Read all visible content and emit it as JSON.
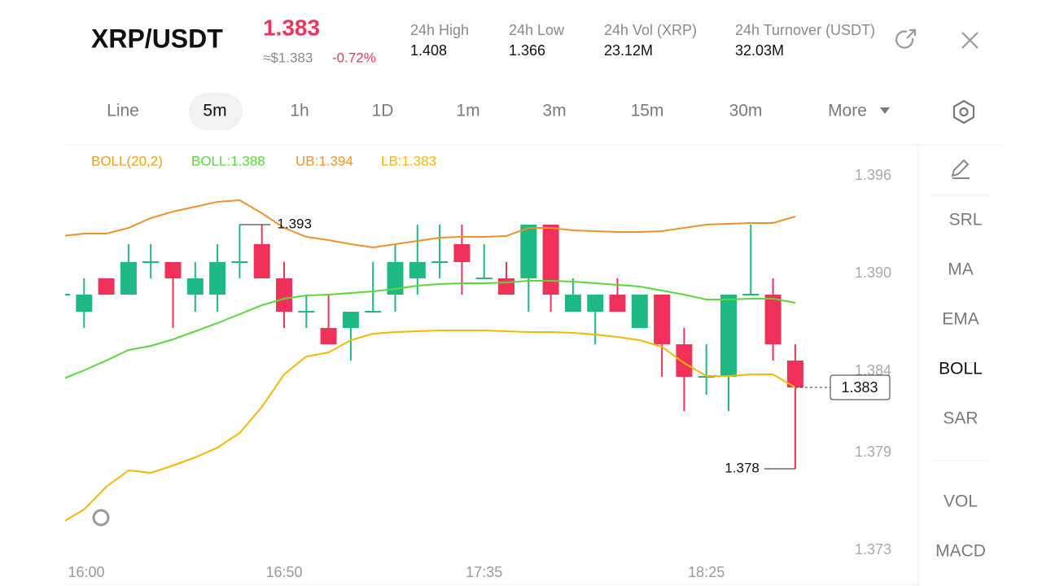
{
  "header": {
    "symbol": "XRP/USDT",
    "price": "1.383",
    "usd_price": "≈$1.383",
    "change": "-0.72%",
    "stats": [
      {
        "label": "24h  High",
        "value": "1.408"
      },
      {
        "label": "24h  Low",
        "value": "1.366"
      },
      {
        "label": "24h  Vol (XRP)",
        "value": "23.12M"
      },
      {
        "label": "24h  Turnover (USDT)",
        "value": "32.03M"
      }
    ]
  },
  "tabs": [
    "Line",
    "5m",
    "1h",
    "1D",
    "1m",
    "3m",
    "15m",
    "30m"
  ],
  "more": "More",
  "indicators": [
    "SRL",
    "MA",
    "EMA",
    "BOLL",
    "SAR"
  ],
  "sub_indicators": [
    "VOL",
    "MACD"
  ],
  "chart_data": {
    "type": "candlestick",
    "indicator": "BOLL(20,2)",
    "up_color": "#1fba84",
    "down_color": "#f0325a",
    "categories": [
      "16:00",
      null,
      null,
      null,
      null,
      null,
      null,
      null,
      null,
      null,
      "16:50",
      null,
      null,
      null,
      null,
      null,
      null,
      null,
      null,
      "17:35",
      null,
      null,
      null,
      null,
      null,
      null,
      null,
      null,
      null,
      "18:25",
      null,
      null,
      null,
      null
    ],
    "open": [
      1.3887,
      1.38765,
      1.3897,
      1.3887,
      1.3907,
      1.3907,
      1.3887,
      1.3887,
      1.3907,
      1.3918,
      1.3897,
      1.38765,
      1.38665,
      1.38665,
      1.38765,
      1.3887,
      1.3897,
      1.3907,
      1.3918,
      1.3897,
      1.3897,
      1.3897,
      1.393,
      1.38765,
      1.38765,
      1.3887,
      1.38665,
      1.3887,
      1.38565,
      1.38365,
      1.38365,
      1.3887,
      1.3887,
      1.38465
    ],
    "high": [
      1.3887,
      1.3897,
      1.3897,
      1.3918,
      1.3918,
      1.3907,
      1.3907,
      1.3918,
      1.393,
      1.393,
      1.3907,
      1.3887,
      1.3887,
      1.38765,
      1.3907,
      1.3918,
      1.393,
      1.393,
      1.393,
      1.3918,
      1.3907,
      1.393,
      1.393,
      1.3897,
      1.3887,
      1.3897,
      1.3887,
      1.3887,
      1.38665,
      1.38565,
      1.3887,
      1.393,
      1.3897,
      1.38565
    ],
    "low": [
      1.3887,
      1.38665,
      1.3887,
      1.3887,
      1.3897,
      1.38665,
      1.38765,
      1.38765,
      1.3897,
      1.3897,
      1.38665,
      1.38665,
      1.38565,
      1.38465,
      1.38765,
      1.38765,
      1.3887,
      1.3897,
      1.3887,
      1.3897,
      1.3887,
      1.38765,
      1.38765,
      1.38765,
      1.38565,
      1.38765,
      1.38665,
      1.38365,
      1.38155,
      1.38255,
      1.38155,
      1.3887,
      1.38465,
      1.378
    ],
    "close": [
      1.3887,
      1.3887,
      1.3887,
      1.3907,
      1.3907,
      1.3897,
      1.3897,
      1.3907,
      1.3907,
      1.3897,
      1.38765,
      1.38765,
      1.38565,
      1.38765,
      1.38765,
      1.3907,
      1.3907,
      1.3907,
      1.3907,
      1.3897,
      1.3887,
      1.393,
      1.3887,
      1.3887,
      1.3887,
      1.38765,
      1.3887,
      1.38565,
      1.38365,
      1.38365,
      1.3887,
      1.3887,
      1.38565,
      1.383
    ],
    "series": [
      {
        "name": "BOLL:1.388",
        "color": "#5ad83b",
        "values": [
          1.3835,
          1.38405,
          1.38465,
          1.3853,
          1.38555,
          1.38595,
          1.38645,
          1.38695,
          1.3875,
          1.38805,
          1.38845,
          1.38865,
          1.3887,
          1.3888,
          1.3889,
          1.38905,
          1.38925,
          1.38935,
          1.3894,
          1.3894,
          1.38945,
          1.38955,
          1.38955,
          1.3895,
          1.3894,
          1.3893,
          1.3892,
          1.38895,
          1.3887,
          1.3884,
          1.3884,
          1.38845,
          1.38845,
          1.3882
        ]
      },
      {
        "name": "UB:1.394",
        "color": "#f0922b",
        "values": [
          1.3923,
          1.39245,
          1.39245,
          1.3928,
          1.3934,
          1.3938,
          1.3941,
          1.3944,
          1.3945,
          1.3937,
          1.3928,
          1.39225,
          1.39205,
          1.3918,
          1.3916,
          1.3918,
          1.392,
          1.3922,
          1.39225,
          1.39225,
          1.3923,
          1.3928,
          1.3928,
          1.39265,
          1.3926,
          1.39255,
          1.39255,
          1.3926,
          1.3928,
          1.393,
          1.39305,
          1.3931,
          1.3931,
          1.3935
        ]
      },
      {
        "name": "LB:1.383",
        "color": "#f5b800",
        "values": [
          1.3747,
          1.3755,
          1.3769,
          1.3779,
          1.37775,
          1.3782,
          1.3787,
          1.3793,
          1.3802,
          1.3818,
          1.3838,
          1.3849,
          1.38515,
          1.3859,
          1.3863,
          1.3864,
          1.38645,
          1.3865,
          1.3865,
          1.3865,
          1.38645,
          1.3864,
          1.3864,
          1.38635,
          1.38625,
          1.3861,
          1.3859,
          1.3855,
          1.3845,
          1.3837,
          1.3837,
          1.3838,
          1.3838,
          1.383
        ]
      }
    ],
    "indicator_color": "#e9a21a",
    "ylim": [
      1.3723,
      1.3978
    ],
    "yticks": [
      1.373,
      1.379,
      1.384,
      {
        "value": 1.39,
        "label": "1.390"
      },
      1.396
    ],
    "high_marker": 1.393,
    "low_marker": 1.378,
    "last_price": 1.383
  }
}
